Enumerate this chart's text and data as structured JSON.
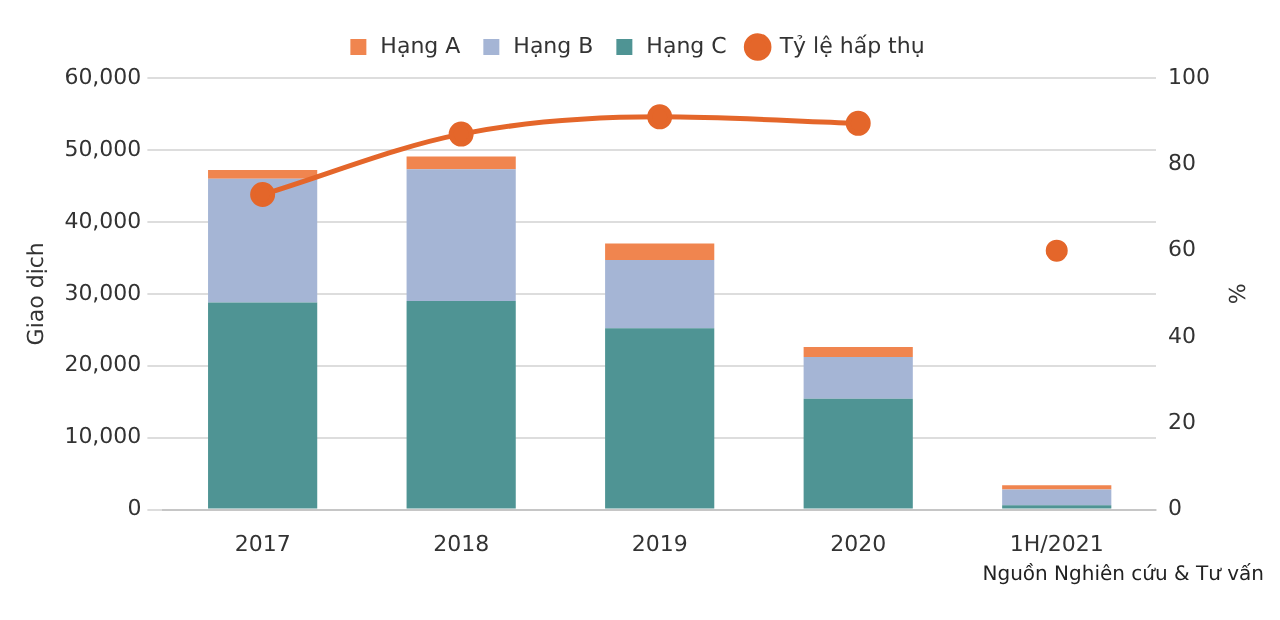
{
  "chart_data": {
    "type": "bar",
    "stacked": true,
    "categories": [
      "2017",
      "2018",
      "2019",
      "2020",
      "1H/2021"
    ],
    "series": [
      {
        "name": "Hạng C",
        "color": "#4f9494",
        "values": [
          28800.0,
          29000.0,
          25200.0,
          15400.0,
          600
        ]
      },
      {
        "name": "Hạng B",
        "color": "#a5b5d5",
        "values": [
          17200.0,
          18300.0,
          9500.0,
          5800.0,
          2200.0
        ]
      },
      {
        "name": "Hạng A",
        "color": "#f0854f",
        "values": [
          1200.0,
          1800.0,
          2300.0,
          1400.0,
          600
        ]
      },
      {
        "name": "Tỷ lệ hấp thụ",
        "type": "line",
        "axis": "y2",
        "marker": "circle",
        "color": "#e4662a",
        "values": [
          73,
          87,
          91,
          89.5,
          null
        ]
      },
      {
        "type": "scatter",
        "axis": "y2",
        "marker": "circle",
        "color": "#e4662a",
        "values": [
          null,
          null,
          null,
          null,
          60
        ]
      }
    ],
    "ylabel": "Giao dịch",
    "y2label": "%",
    "ylim": [
      0,
      60000
    ],
    "yticks": [
      {
        "value": 0,
        "label": "0"
      },
      {
        "value": 10000,
        "label": "10,000"
      },
      {
        "value": 20000,
        "label": "20,000"
      },
      {
        "value": 30000,
        "label": "30,000"
      },
      {
        "value": 40000,
        "label": "40,000"
      },
      {
        "value": 50000,
        "label": "50,000"
      },
      {
        "value": 60000,
        "label": "60,000"
      }
    ],
    "y2lim": [
      0,
      100
    ],
    "y2ticks": [
      0,
      20,
      40,
      60,
      80,
      100
    ],
    "grid": "y",
    "legend": "top",
    "annotations": [
      "Nguồn Nghiên cứu & Tư vấn"
    ]
  }
}
